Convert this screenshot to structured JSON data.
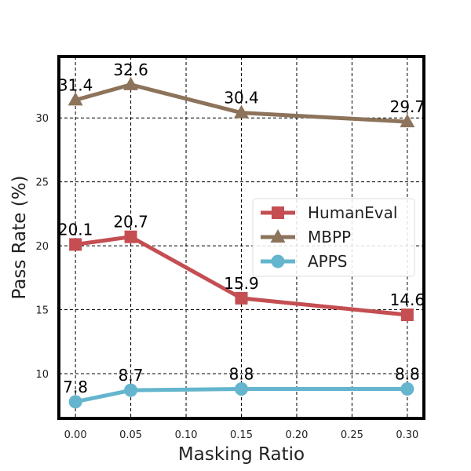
{
  "chart_data": {
    "type": "line",
    "title": "",
    "xlabel": "Masking Ratio",
    "ylabel": "Pass Rate (%)",
    "x": [
      0.0,
      0.05,
      0.15,
      0.3
    ],
    "xlim": [
      -0.015,
      0.315
    ],
    "ylim": [
      6.5,
      34.8
    ],
    "xticks": [
      0.0,
      0.05,
      0.1,
      0.15,
      0.2,
      0.25,
      0.3
    ],
    "xtick_labels": [
      "0.00",
      "0.05",
      "0.10",
      "0.15",
      "0.20",
      "0.25",
      "0.30"
    ],
    "yticks": [
      10,
      15,
      20,
      25,
      30
    ],
    "ytick_labels": [
      "10",
      "15",
      "20",
      "25",
      "30"
    ],
    "grid": true,
    "legend_position": "center-right",
    "series": [
      {
        "name": "HumanEval",
        "values": [
          20.1,
          20.7,
          15.9,
          14.6
        ],
        "labels": [
          "20.1",
          "20.7",
          "15.9",
          "14.6"
        ],
        "color": "#c44e52",
        "marker": "square"
      },
      {
        "name": "MBPP",
        "values": [
          31.4,
          32.6,
          30.4,
          29.7
        ],
        "labels": [
          "31.4",
          "32.6",
          "30.4",
          "29.7"
        ],
        "color": "#8c735a",
        "marker": "triangle"
      },
      {
        "name": "APPS",
        "values": [
          7.8,
          8.7,
          8.8,
          8.8
        ],
        "labels": [
          "7.8",
          "8.7",
          "8.8",
          "8.8"
        ],
        "color": "#64b5cd",
        "marker": "circle"
      }
    ]
  }
}
